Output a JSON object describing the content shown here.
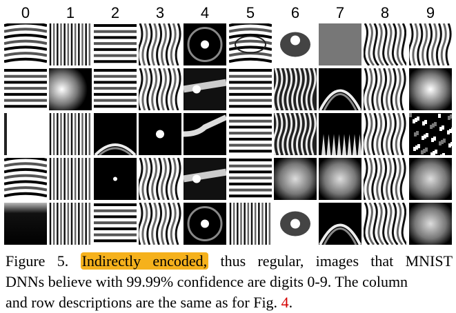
{
  "columns": [
    "0",
    "1",
    "2",
    "3",
    "4",
    "5",
    "6",
    "7",
    "8",
    "9"
  ],
  "rows": 5,
  "patterns": [
    [
      "hwave",
      "vstripe",
      "hband",
      "vwave",
      "dotring",
      "hwaverip",
      "blobtop",
      "vglow",
      "swirl",
      "vwave"
    ],
    [
      "hband",
      "glowleft",
      "hband",
      "vwave",
      "dotflat",
      "hband",
      "vwavedark",
      "arc",
      "vwave",
      "hglow"
    ],
    [
      "white",
      "vstripe",
      "darkhump",
      "dotdark",
      "diagband",
      "hband",
      "vwavedark",
      "spiky",
      "vwave",
      "noisedark"
    ],
    [
      "hwave",
      "vstripe",
      "darkdot",
      "vwave",
      "dotflat",
      "hband",
      "darkglow",
      "hglowdark",
      "vwave",
      "hglowdark"
    ],
    [
      "dark",
      "vstripe",
      "hband",
      "vwave",
      "dotring",
      "vstripe",
      "blobwhite",
      "arc",
      "swirl",
      "hglowdark"
    ]
  ],
  "caption": {
    "prefix": "Figure 5.",
    "highlight": "Indirectly encoded,",
    "line1_rest": "thus regular, images that MNIST",
    "line2": "DNNs believe with 99.99% confidence are digits 0-9. The column",
    "line3_pre": "and row descriptions are the same as for Fig.",
    "ref": "4",
    "line3_post": "."
  }
}
